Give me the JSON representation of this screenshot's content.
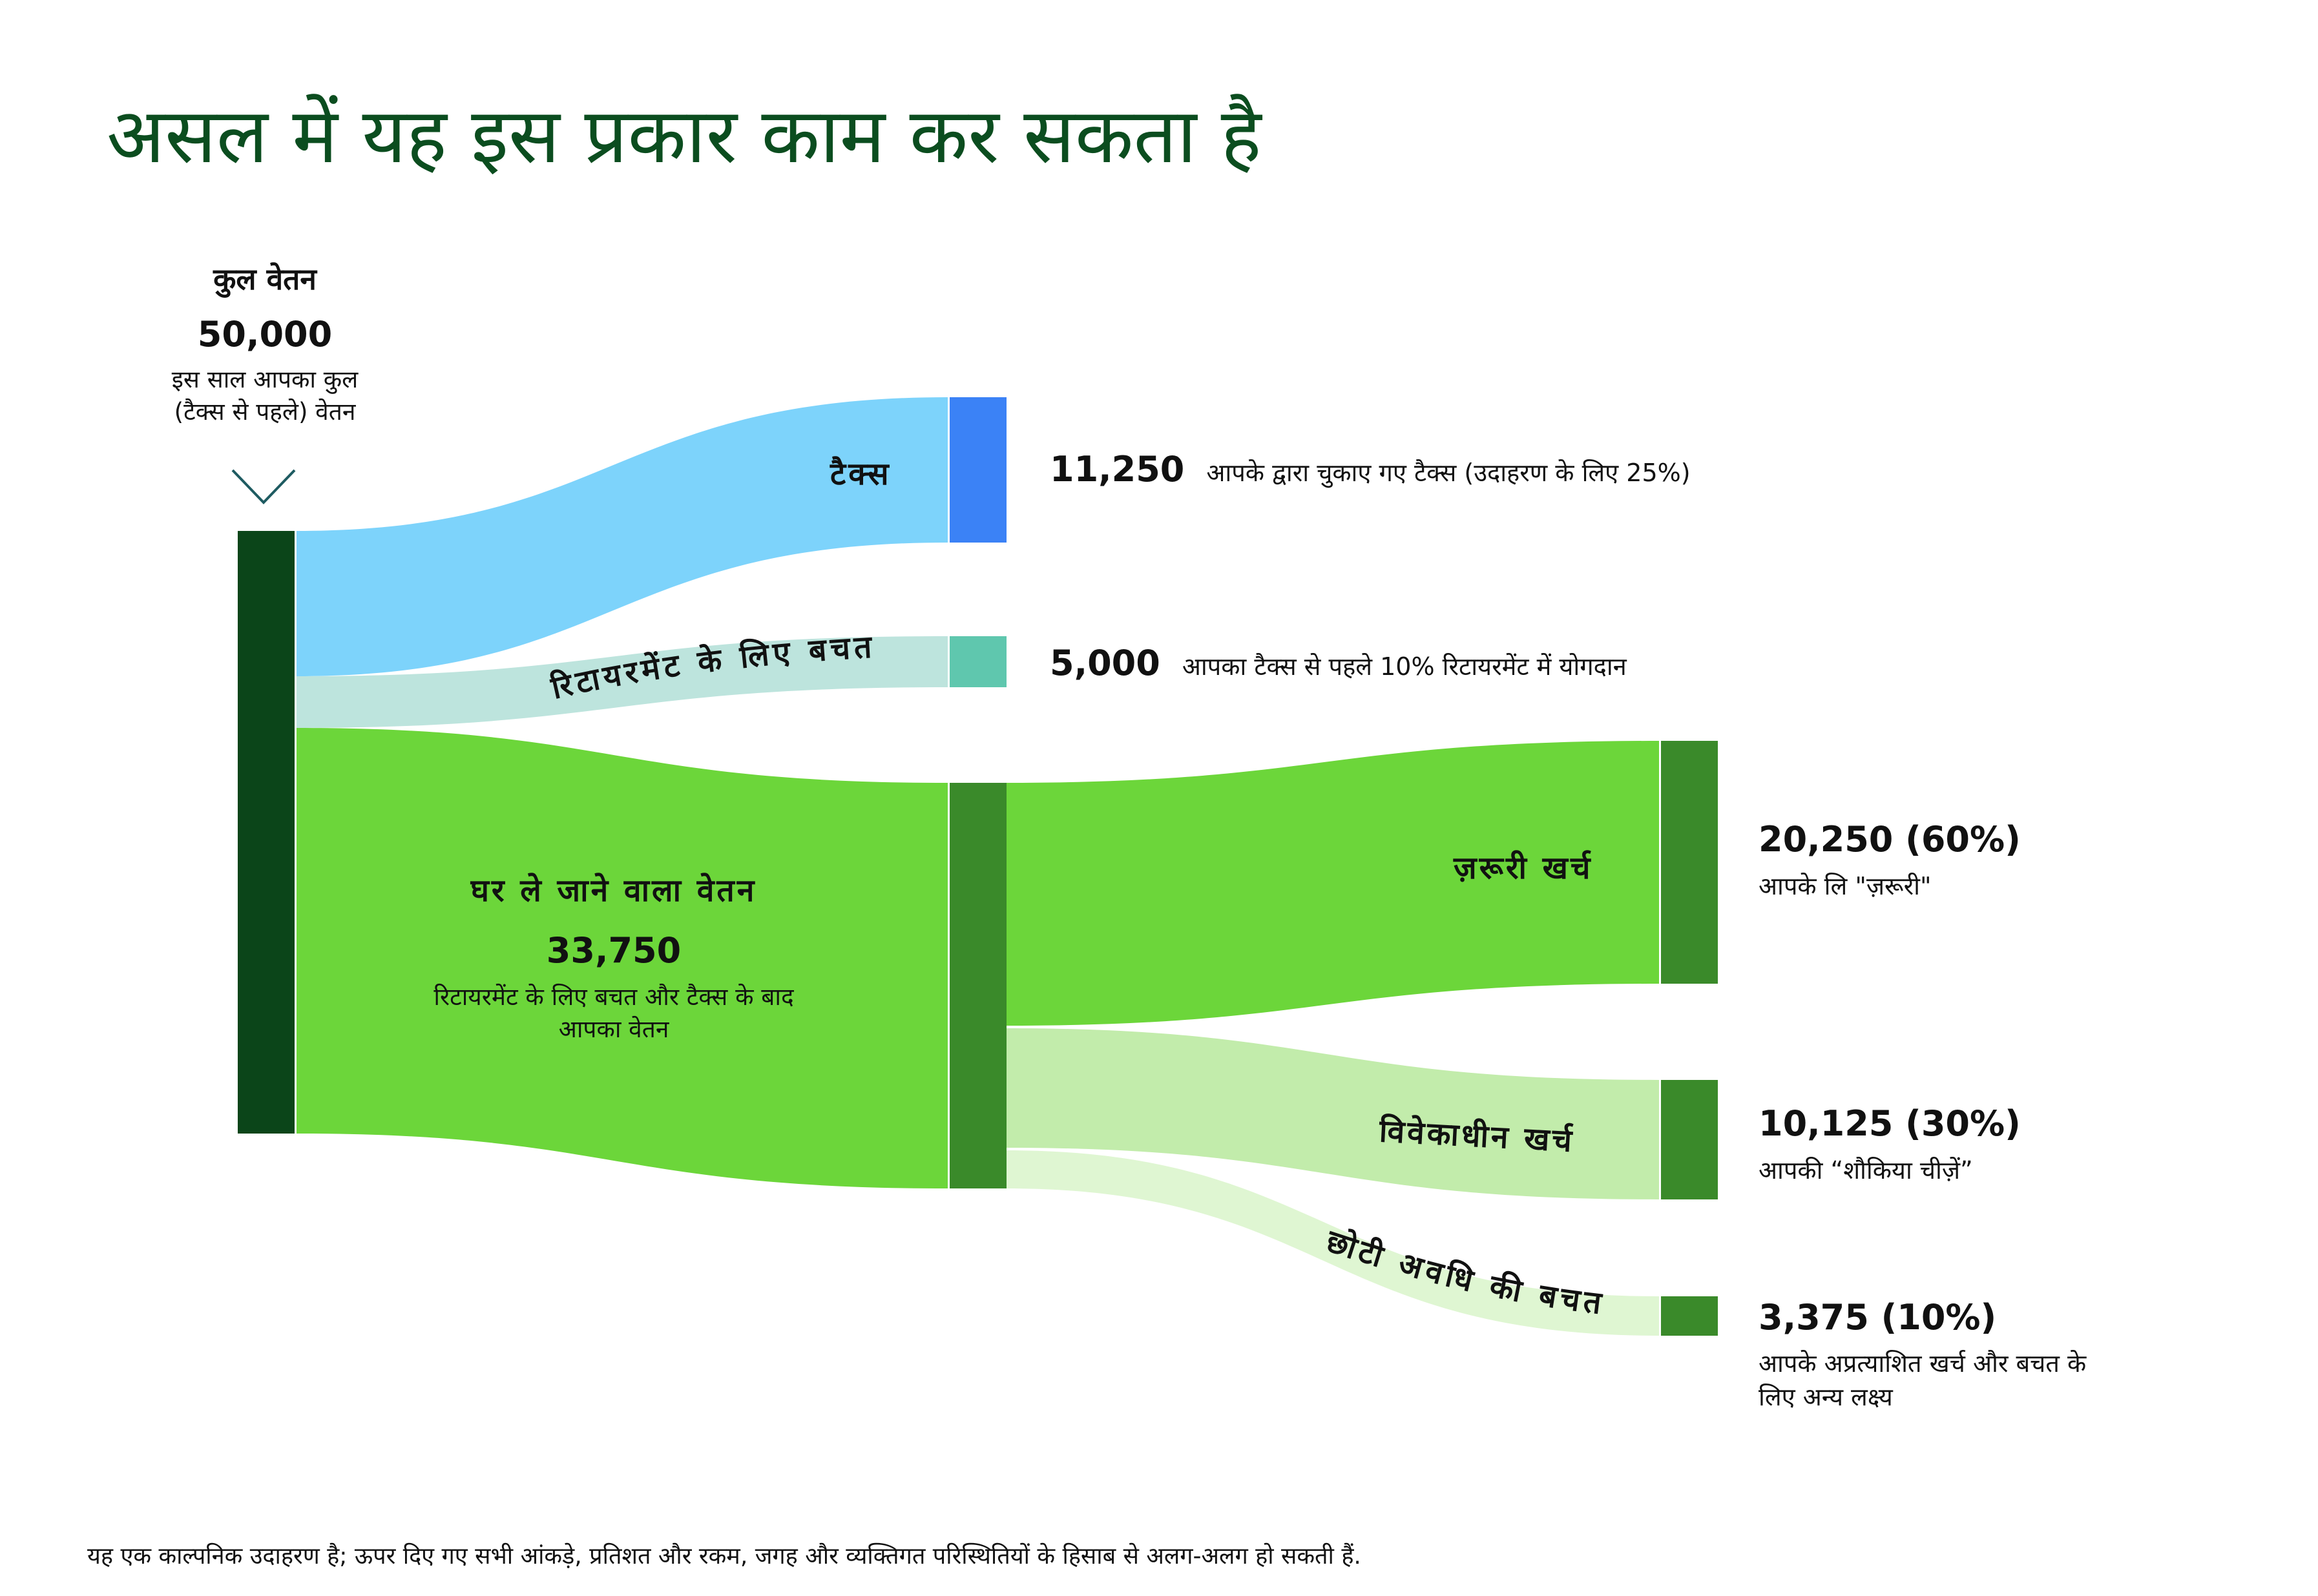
{
  "title": "असल में यह इस प्रकार काम कर सकता है",
  "gross": {
    "label": "कुल वेतन",
    "amount": "50,000",
    "desc_line1": "इस साल आपका कुल",
    "desc_line2": "(टैक्स से पहले) वेतन"
  },
  "flows": {
    "tax": {
      "label": "टैक्स",
      "amount": "11,250",
      "desc": "आपके द्वारा चुकाए गए टैक्स (उदाहरण के लिए 25%)"
    },
    "retirement": {
      "label": "रिटायरमेंट के लिए बचत",
      "amount": "5,000",
      "desc": "आपका टैक्स से पहले 10% रिटायरमेंट में योगदान"
    },
    "takehome": {
      "label": "घर ले जाने वाला वेतन",
      "amount": "33,750",
      "desc_line1": "रिटायरमेंट के लिए बचत और टैक्स के बाद",
      "desc_line2": "आपका वेतन"
    },
    "essentials": {
      "label": "ज़रूरी खर्च",
      "amount": "20,250 (60%)",
      "desc": "आपके लि \"ज़रूरी\""
    },
    "discretionary": {
      "label": "विवेकाधीन खर्च",
      "amount": "10,125 (30%)",
      "desc": "आपकी “शौकिया चीज़ें”"
    },
    "shortterm": {
      "label": "छोटी अवधि की बचत",
      "amount": "3,375 (10%)",
      "desc_line1": "आपके अप्रत्याशित खर्च और बचत के",
      "desc_line2": "लिए अन्य लक्ष्य"
    }
  },
  "colors": {
    "title": "#0b4d1f",
    "gross_bar": "#0b4519",
    "tax_flow": "#7dd3fb",
    "tax_bar": "#3b82f6",
    "retirement_flow": "#bde4dd",
    "retirement_bar": "#5fc7ae",
    "takehome_flow": "#6cd63a",
    "takehome_bar": "#3a8a2a",
    "essentials_flow": "#6cd63a",
    "discretionary_flow": "#c2ecab",
    "shortterm_flow": "#dff6d2",
    "leaf_bar": "#3a8a2a",
    "chevron": "#1e5b61"
  },
  "icons": {
    "down_chevron": "chevron-down-icon"
  },
  "footnote": "यह एक काल्पनिक उदाहरण है; ऊपर दिए गए सभी आंकड़े, प्रतिशत और रकम, जगह और व्यक्तिगत परिस्थितियों के हिसाब से अलग-अलग हो सकती हैं."
}
